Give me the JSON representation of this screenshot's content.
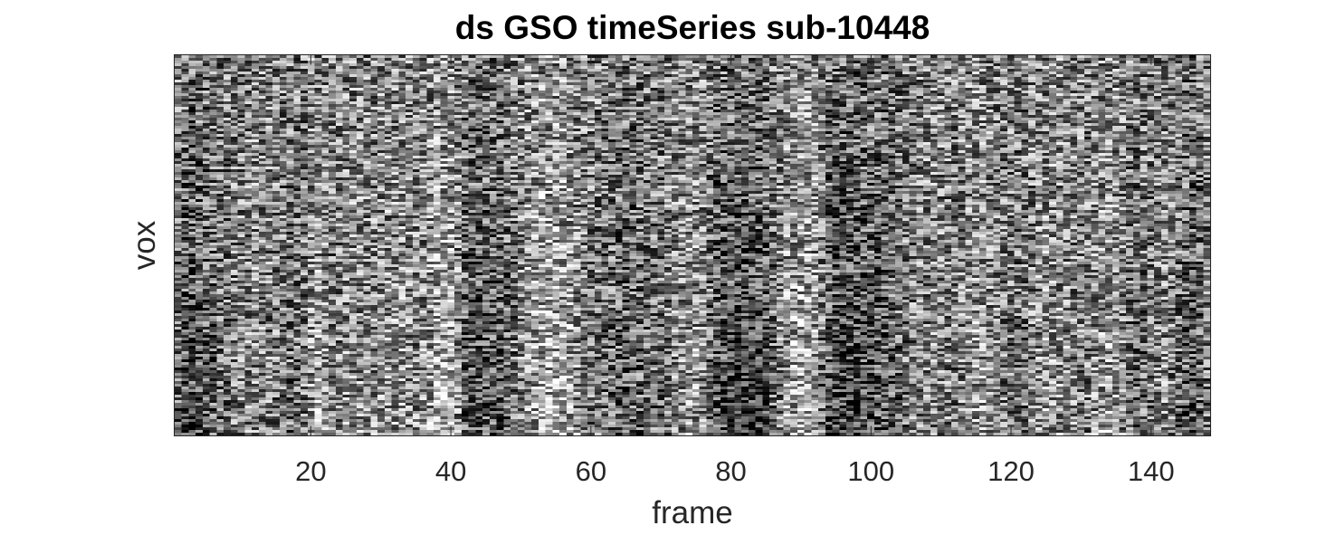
{
  "chart_data": {
    "type": "heatmap",
    "title": "ds GSO timeSeries sub-10448",
    "xlabel": "frame",
    "ylabel": "vox",
    "xlim": [
      1,
      148
    ],
    "x_ticks": [
      "20",
      "40",
      "60",
      "80",
      "100",
      "120",
      "140"
    ],
    "x_tick_values": [
      20,
      40,
      60,
      80,
      100,
      120,
      140
    ],
    "y_ticks": [],
    "colormap": "gray",
    "grid": false,
    "frames": 148,
    "vox_rows": 140,
    "column_intensity": [
      0.4,
      0.3,
      0.25,
      0.28,
      0.32,
      0.35,
      0.4,
      0.45,
      0.48,
      0.5,
      0.52,
      0.55,
      0.52,
      0.5,
      0.48,
      0.45,
      0.42,
      0.4,
      0.45,
      0.6,
      0.65,
      0.55,
      0.45,
      0.5,
      0.55,
      0.58,
      0.55,
      0.5,
      0.52,
      0.55,
      0.58,
      0.6,
      0.58,
      0.55,
      0.52,
      0.55,
      0.62,
      0.68,
      0.72,
      0.7,
      0.55,
      0.35,
      0.28,
      0.25,
      0.3,
      0.32,
      0.3,
      0.35,
      0.45,
      0.55,
      0.62,
      0.65,
      0.68,
      0.7,
      0.72,
      0.7,
      0.65,
      0.55,
      0.5,
      0.48,
      0.45,
      0.4,
      0.38,
      0.35,
      0.33,
      0.35,
      0.38,
      0.4,
      0.42,
      0.45,
      0.48,
      0.52,
      0.55,
      0.58,
      0.6,
      0.55,
      0.4,
      0.28,
      0.22,
      0.2,
      0.18,
      0.16,
      0.18,
      0.22,
      0.3,
      0.4,
      0.5,
      0.6,
      0.68,
      0.72,
      0.7,
      0.62,
      0.45,
      0.3,
      0.22,
      0.2,
      0.18,
      0.2,
      0.24,
      0.28,
      0.3,
      0.32,
      0.35,
      0.4,
      0.45,
      0.48,
      0.5,
      0.52,
      0.55,
      0.52,
      0.5,
      0.48,
      0.52,
      0.58,
      0.62,
      0.6,
      0.55,
      0.5,
      0.48,
      0.45,
      0.42,
      0.45,
      0.5,
      0.55,
      0.58,
      0.6,
      0.58,
      0.55,
      0.52,
      0.5,
      0.48,
      0.55,
      0.62,
      0.65,
      0.6,
      0.5,
      0.42,
      0.38,
      0.4,
      0.45,
      0.5,
      0.55,
      0.5,
      0.4,
      0.32,
      0.3,
      0.35,
      0.45
    ]
  }
}
